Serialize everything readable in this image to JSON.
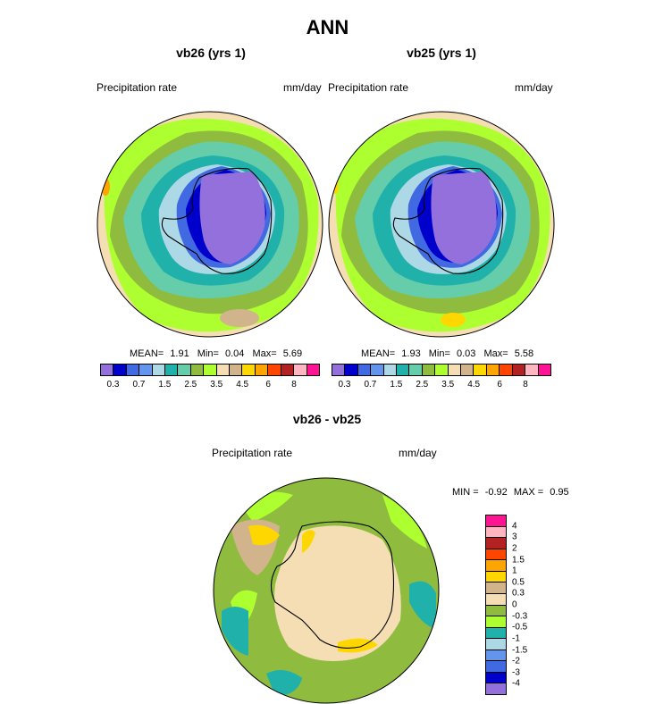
{
  "figure": {
    "title": "ANN",
    "panels": [
      {
        "title": "vb26 (yrs 1)",
        "left_label": "Precipitation rate",
        "right_label": "mm/day",
        "stats": {
          "mean_label": "MEAN=",
          "mean": "1.91",
          "min_label": "Min=",
          "min": "0.04",
          "max_label": "Max=",
          "max": "5.69"
        }
      },
      {
        "title": "vb25 (yrs 1)",
        "left_label": "Precipitation rate",
        "right_label": "mm/day",
        "stats": {
          "mean_label": "MEAN=",
          "mean": "1.93",
          "min_label": "Min=",
          "min": "0.03",
          "max_label": "Max=",
          "max": "5.58"
        }
      }
    ],
    "diff_panel": {
      "title": "vb26 - vb25",
      "left_label": "Precipitation rate",
      "right_label": "mm/day",
      "minmax": {
        "min_label": "MIN =",
        "min": "-0.92",
        "max_label": "MAX =",
        "max": "0.95"
      }
    }
  },
  "chart_data": [
    {
      "type": "heatmap",
      "title": "vb26 (yrs 1)",
      "variable": "Precipitation rate",
      "units": "mm/day",
      "projection": "south-polar-stereographic",
      "mean": 1.91,
      "min": 0.04,
      "max": 5.69,
      "colorbar": {
        "tick_labels": [
          "0.3",
          "0.7",
          "1.5",
          "2.5",
          "3.5",
          "4.5",
          "6",
          "8"
        ],
        "colors": [
          "#9370db",
          "#0000cd",
          "#4169e1",
          "#6495ed",
          "#add8e6",
          "#20b2aa",
          "#66cdaa",
          "#8fbc3f",
          "#adff2f",
          "#f5deb3",
          "#d2b48c",
          "#ffd700",
          "#ffa500",
          "#ff4500",
          "#b22222",
          "#ffb6c1",
          "#ff1493"
        ]
      }
    },
    {
      "type": "heatmap",
      "title": "vb25 (yrs 1)",
      "variable": "Precipitation rate",
      "units": "mm/day",
      "projection": "south-polar-stereographic",
      "mean": 1.93,
      "min": 0.03,
      "max": 5.58,
      "colorbar": {
        "tick_labels": [
          "0.3",
          "0.7",
          "1.5",
          "2.5",
          "3.5",
          "4.5",
          "6",
          "8"
        ],
        "colors": [
          "#9370db",
          "#0000cd",
          "#4169e1",
          "#6495ed",
          "#add8e6",
          "#20b2aa",
          "#66cdaa",
          "#8fbc3f",
          "#adff2f",
          "#f5deb3",
          "#d2b48c",
          "#ffd700",
          "#ffa500",
          "#ff4500",
          "#b22222",
          "#ffb6c1",
          "#ff1493"
        ]
      }
    },
    {
      "type": "heatmap",
      "title": "vb26 - vb25",
      "variable": "Precipitation rate",
      "units": "mm/day",
      "projection": "south-polar-stereographic",
      "min": -0.92,
      "max": 0.95,
      "colorbar": {
        "tick_labels": [
          "4",
          "3",
          "2",
          "1.5",
          "1",
          "0.5",
          "0.3",
          "0",
          "-0.3",
          "-0.5",
          "-1",
          "-1.5",
          "-2",
          "-3",
          "-4"
        ],
        "colors": [
          "#ff1493",
          "#ffb6c1",
          "#b22222",
          "#ff4500",
          "#ffa500",
          "#ffd700",
          "#d2b48c",
          "#f5deb3",
          "#8fbc3f",
          "#adff2f",
          "#20b2aa",
          "#add8e6",
          "#6495ed",
          "#4169e1",
          "#0000cd",
          "#9370db"
        ]
      }
    }
  ]
}
